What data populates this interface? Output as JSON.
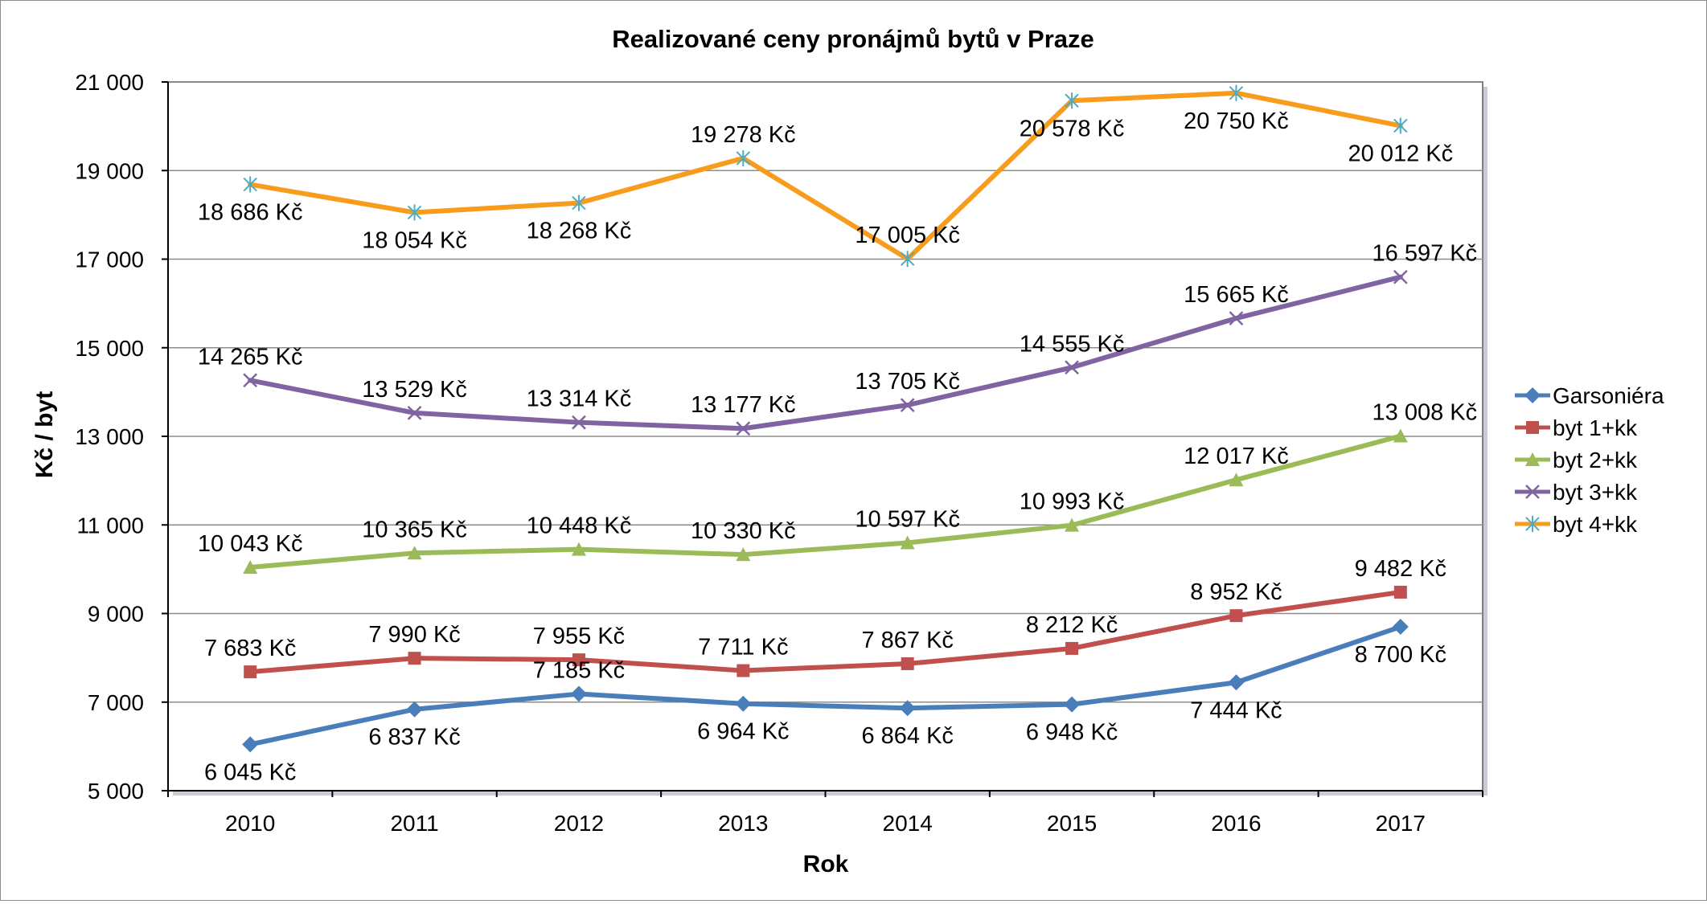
{
  "chart_data": {
    "type": "line",
    "title": "Realizované ceny pronájmů bytů v Praze",
    "xlabel": "Rok",
    "ylabel": "Kč / byt",
    "categories": [
      "2010",
      "2011",
      "2012",
      "2013",
      "2014",
      "2015",
      "2016",
      "2017"
    ],
    "ylim": [
      5000,
      21000
    ],
    "yticks": [
      5000,
      7000,
      9000,
      11000,
      13000,
      15000,
      17000,
      19000,
      21000
    ],
    "ytick_labels": [
      "5 000",
      "7 000",
      "9 000",
      "11 000",
      "13 000",
      "15 000",
      "17 000",
      "19 000",
      "21 000"
    ],
    "grid": true,
    "legend_position": "right",
    "series": [
      {
        "name": "Garsoniéra",
        "color": "#4a7ebb",
        "marker": "diamond",
        "values": [
          6045,
          6837,
          7185,
          6964,
          6864,
          6948,
          7444,
          8700
        ],
        "labels": [
          "6 045 Kč",
          "6 837 Kč",
          "7 185 Kč",
          "6 964 Kč",
          "6 864 Kč",
          "6 948 Kč",
          "7 444 Kč",
          "8 700 Kč"
        ]
      },
      {
        "name": "byt 1+kk",
        "color": "#c0504d",
        "marker": "square",
        "values": [
          7683,
          7990,
          7955,
          7711,
          7867,
          8212,
          8952,
          9482
        ],
        "labels": [
          "7 683 Kč",
          "7 990 Kč",
          "7 955 Kč",
          "7 711 Kč",
          "7 867 Kč",
          "8 212 Kč",
          "8 952 Kč",
          "9 482 Kč"
        ]
      },
      {
        "name": "byt 2+kk",
        "color": "#9bbb59",
        "marker": "triangle",
        "values": [
          10043,
          10365,
          10448,
          10330,
          10597,
          10993,
          12017,
          13008
        ],
        "labels": [
          "10 043 Kč",
          "10 365 Kč",
          "10 448 Kč",
          "10 330 Kč",
          "10 597 Kč",
          "10 993 Kč",
          "12 017 Kč",
          "13 008 Kč"
        ]
      },
      {
        "name": "byt 3+kk",
        "color": "#8064a2",
        "marker": "x",
        "values": [
          14265,
          13529,
          13314,
          13177,
          13705,
          14555,
          15665,
          16597
        ],
        "labels": [
          "14 265 Kč",
          "13 529 Kč",
          "13 314 Kč",
          "13 177 Kč",
          "13 705 Kč",
          "14 555 Kč",
          "15 665 Kč",
          "16 597 Kč"
        ]
      },
      {
        "name": "byt 4+kk",
        "color": "#f79c1c",
        "marker_color": "#4bacc6",
        "marker": "star",
        "values": [
          18686,
          18054,
          18268,
          19278,
          17005,
          20578,
          20750,
          20012
        ],
        "labels": [
          "18 686 Kč",
          "18 054 Kč",
          "18 268 Kč",
          "19 278 Kč",
          "17 005 Kč",
          "20 578 Kč",
          "20 750 Kč",
          "20 012 Kč"
        ]
      }
    ]
  }
}
